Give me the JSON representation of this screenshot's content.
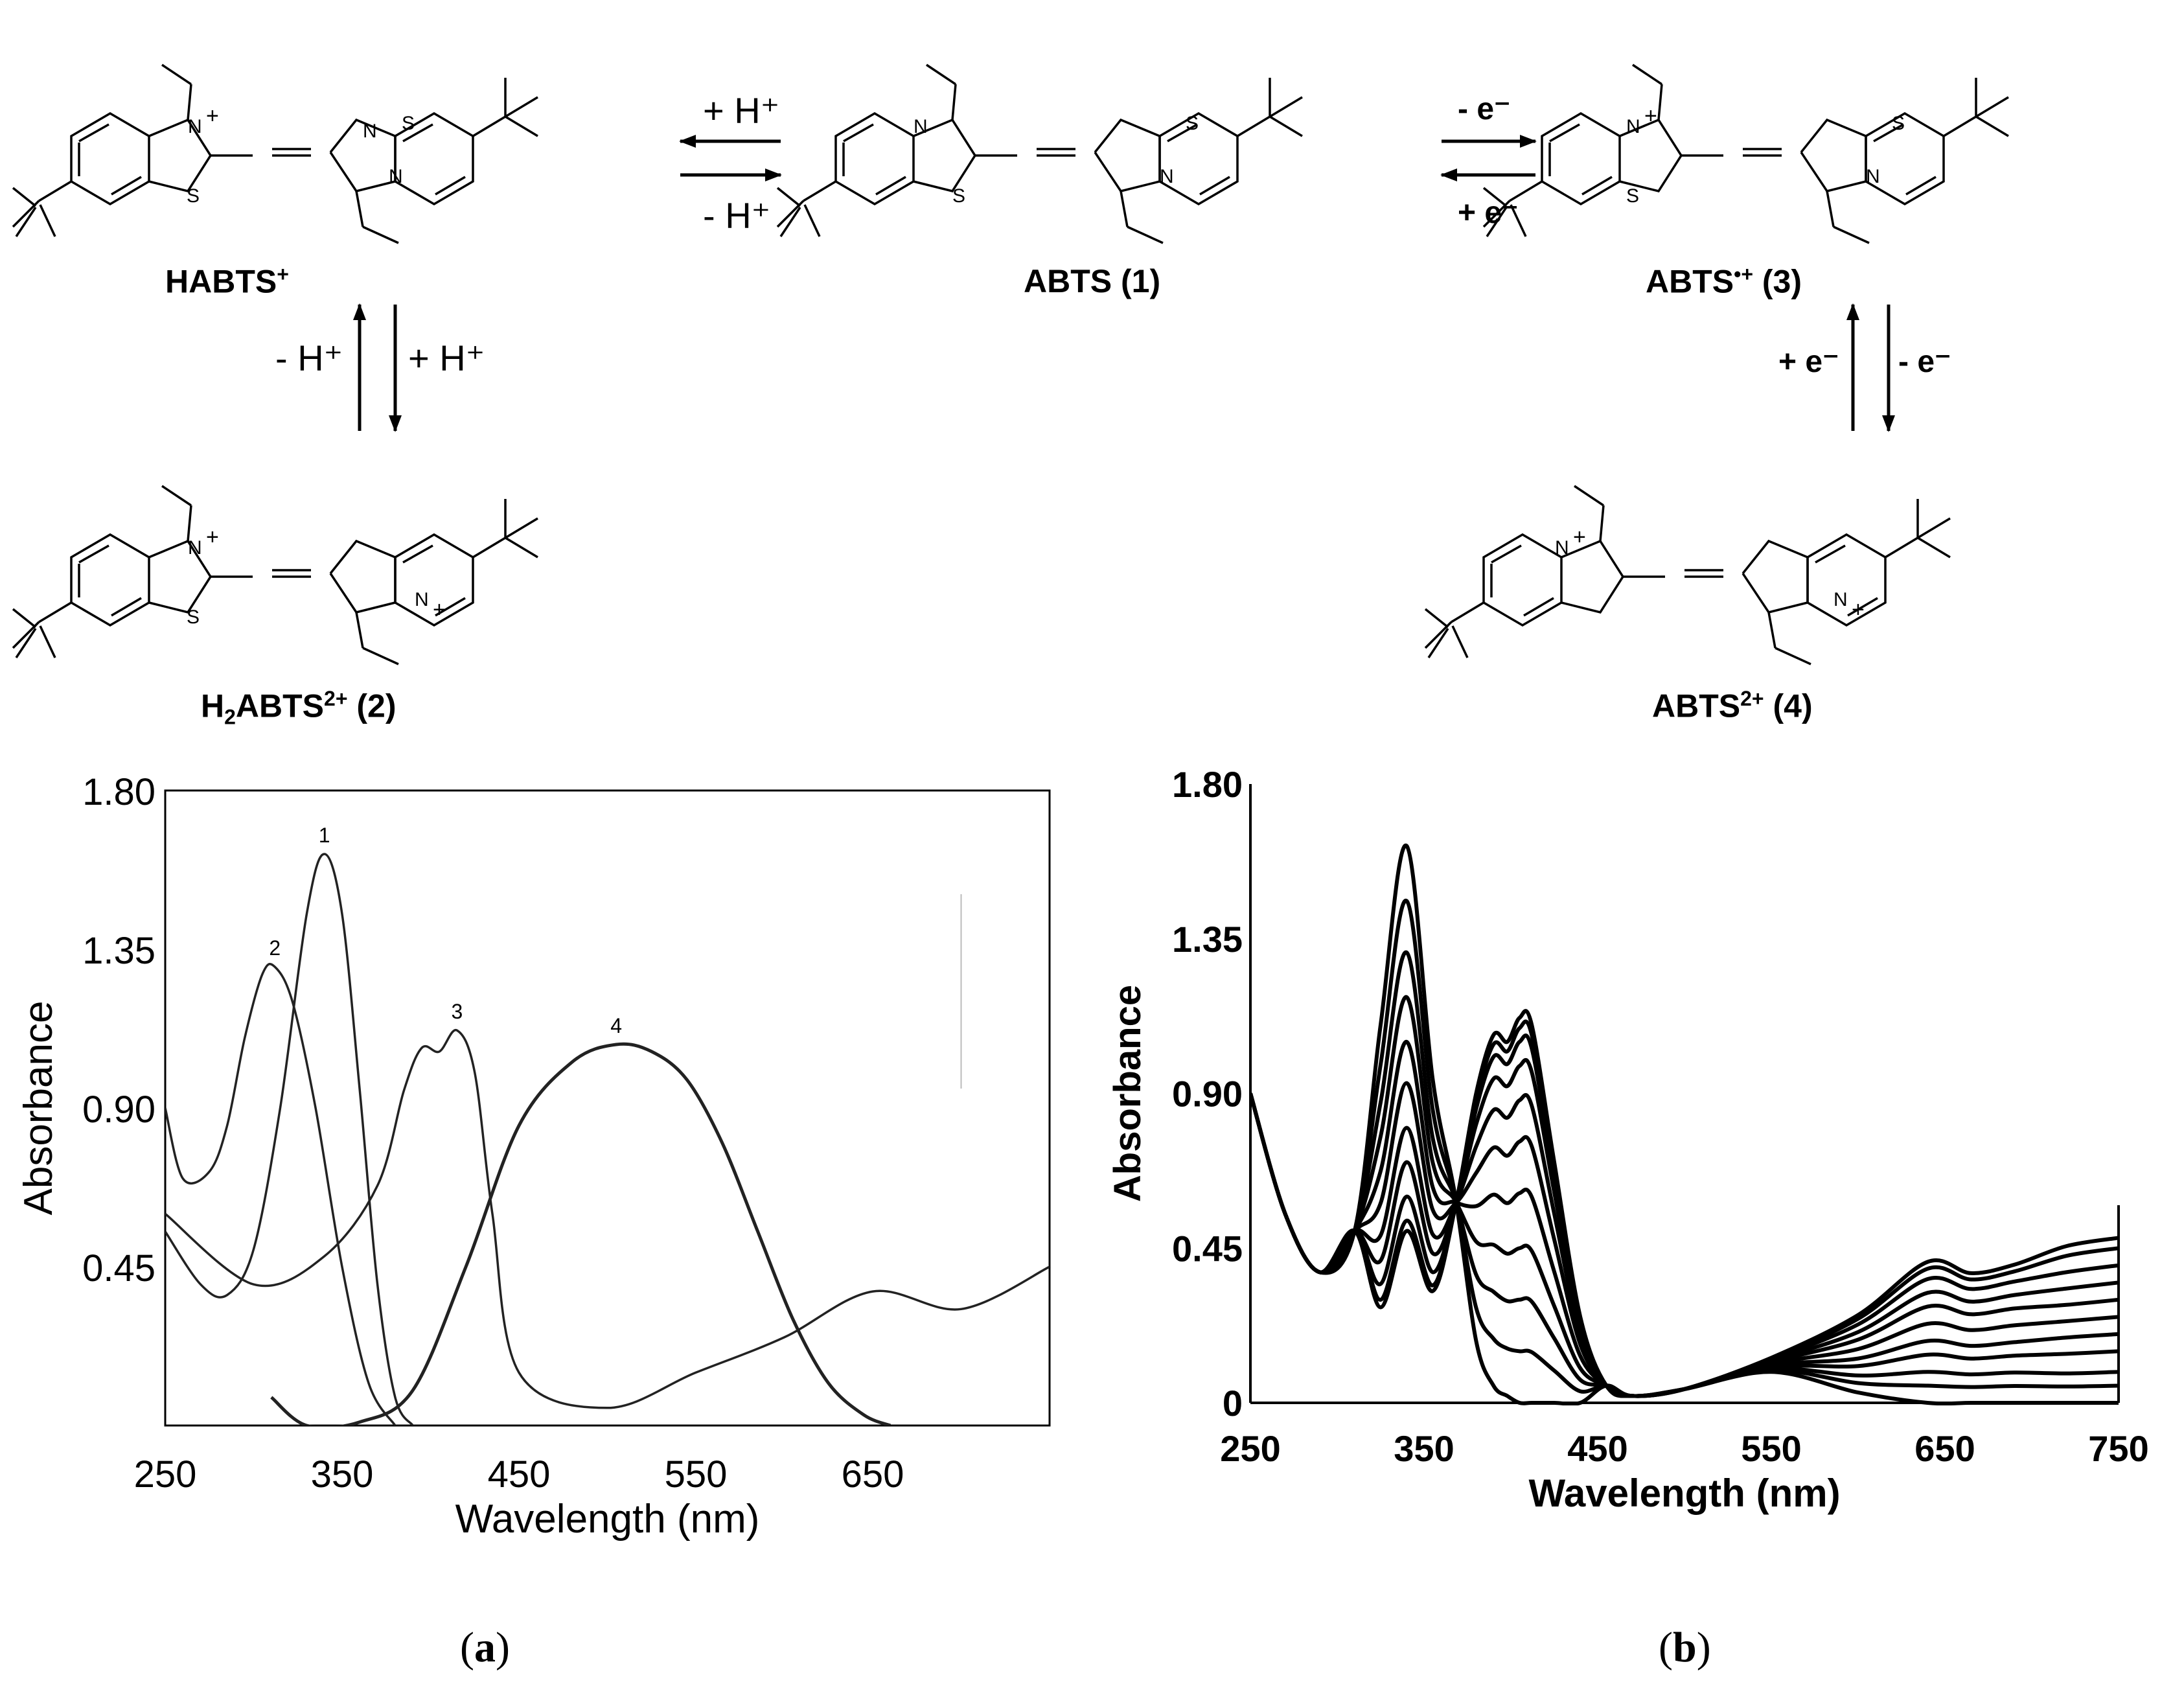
{
  "scheme": {
    "molecules": [
      {
        "id": "habts",
        "label": "HABTS",
        "sup": "+",
        "num": ""
      },
      {
        "id": "abts",
        "label": "ABTS",
        "sup": "",
        "num": " (1)"
      },
      {
        "id": "abts-radical",
        "label": "ABTS",
        "sup": "•+",
        "num": " (3)"
      },
      {
        "id": "h2abts",
        "label": "H",
        "sub": "2",
        "label2": "ABTS",
        "sup": "2+",
        "num": " (2)"
      },
      {
        "id": "abts2",
        "label": "ABTS",
        "sup": "2+",
        "num": " (4)"
      }
    ],
    "arrows": {
      "habts_abts_top": "+ H⁺",
      "habts_abts_bottom": "- H⁺",
      "abts_radical_top": "- e⁻",
      "abts_radical_bottom": "+ e⁻",
      "habts_h2abts_left": "- H⁺",
      "habts_h2abts_right": "+ H⁺",
      "radical_abts2_left": "+ e⁻",
      "radical_abts2_right": "- e⁻"
    }
  },
  "chart_data": [
    {
      "panel": "(a)",
      "type": "line",
      "xlabel": "Wavelength (nm)",
      "ylabel": "Absorbance",
      "xlim": [
        250,
        750
      ],
      "ylim": [
        0,
        1.8
      ],
      "xticks": [
        "250",
        "350",
        "450",
        "550",
        "650"
      ],
      "yticks": [
        "0.45",
        "0.90",
        "1.35",
        "1.80"
      ],
      "series": [
        {
          "name": "1",
          "x": [
            250,
            270,
            285,
            300,
            315,
            330,
            340,
            350,
            360,
            370,
            380,
            390
          ],
          "y": [
            0.55,
            0.4,
            0.37,
            0.5,
            0.9,
            1.45,
            1.62,
            1.45,
            0.95,
            0.4,
            0.08,
            0.0
          ]
        },
        {
          "name": "2",
          "x": [
            250,
            260,
            275,
            285,
            295,
            305,
            312,
            322,
            335,
            350,
            365,
            380
          ],
          "y": [
            0.9,
            0.7,
            0.72,
            0.85,
            1.1,
            1.28,
            1.3,
            1.2,
            0.9,
            0.45,
            0.12,
            0.0
          ]
        },
        {
          "name": "3",
          "x": [
            250,
            300,
            340,
            370,
            385,
            395,
            405,
            415,
            425,
            435,
            450,
            500,
            550,
            600,
            650,
            700,
            750
          ],
          "y": [
            0.6,
            0.4,
            0.48,
            0.68,
            0.95,
            1.07,
            1.06,
            1.12,
            1.0,
            0.6,
            0.15,
            0.05,
            0.15,
            0.25,
            0.38,
            0.33,
            0.45
          ]
        },
        {
          "name": "4",
          "x": [
            310,
            330,
            360,
            390,
            420,
            450,
            480,
            505,
            525,
            545,
            565,
            585,
            605,
            625,
            645,
            660
          ],
          "y": [
            0.08,
            0.0,
            0.01,
            0.1,
            0.45,
            0.85,
            1.03,
            1.08,
            1.06,
            0.98,
            0.8,
            0.55,
            0.3,
            0.12,
            0.03,
            0.0
          ]
        }
      ]
    },
    {
      "panel": "(b)",
      "type": "line",
      "xlabel": "Wavelength (nm)",
      "ylabel": "Absorbance",
      "xlim": [
        250,
        750
      ],
      "ylim": [
        0,
        1.8
      ],
      "xticks": [
        "250",
        "350",
        "450",
        "550",
        "650",
        "750"
      ],
      "yticks": [
        "0",
        "0.45",
        "0.90",
        "1.35",
        "1.80"
      ],
      "series_description": "Spectral series: 1.62→0.50 at ~340 nm; 0→1.12 at ~405 nm; 0→0.48 at 750 nm",
      "series": [
        {
          "peak340": 1.62,
          "peak405": 0.0,
          "peak650": 0.0,
          "end750": 0.0
        },
        {
          "peak340": 1.46,
          "peak405": 0.15,
          "peak650": 0.05,
          "end750": 0.05
        },
        {
          "peak340": 1.31,
          "peak405": 0.3,
          "peak650": 0.09,
          "end750": 0.09
        },
        {
          "peak340": 1.18,
          "peak405": 0.45,
          "peak650": 0.14,
          "end750": 0.15
        },
        {
          "peak340": 1.05,
          "peak405": 0.61,
          "peak650": 0.18,
          "end750": 0.2
        },
        {
          "peak340": 0.93,
          "peak405": 0.76,
          "peak650": 0.23,
          "end750": 0.25
        },
        {
          "peak340": 0.8,
          "peak405": 0.88,
          "peak650": 0.28,
          "end750": 0.3
        },
        {
          "peak340": 0.7,
          "peak405": 0.98,
          "peak650": 0.32,
          "end750": 0.35
        },
        {
          "peak340": 0.6,
          "peak405": 1.05,
          "peak650": 0.36,
          "end750": 0.4
        },
        {
          "peak340": 0.53,
          "peak405": 1.09,
          "peak650": 0.39,
          "end750": 0.45
        },
        {
          "peak340": 0.5,
          "peak405": 1.12,
          "peak650": 0.41,
          "end750": 0.48
        }
      ]
    }
  ],
  "panel_labels": {
    "a": "a",
    "b": "b"
  }
}
